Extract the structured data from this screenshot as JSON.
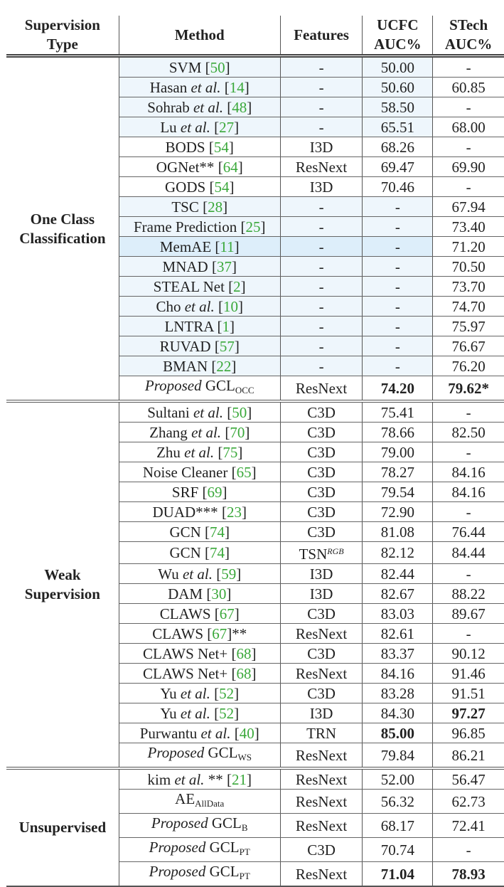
{
  "header": {
    "supervision_type": [
      "Supervision",
      "Type"
    ],
    "method": "Method",
    "features": "Features",
    "ucfc": [
      "UCFC",
      "AUC%"
    ],
    "stech": [
      "STech",
      "AUC%"
    ]
  },
  "groups": [
    {
      "label": [
        "One Class",
        "Classification"
      ],
      "rows": [
        {
          "name": "SVM",
          "ital": "",
          "ref": "50",
          "suffix": "",
          "features": "-",
          "ucfc": "50.00",
          "stech": "-"
        },
        {
          "name": "Hasan ",
          "ital": "et al.",
          "ref": "14",
          "suffix": "",
          "features": "-",
          "ucfc": "50.60",
          "stech": "60.85"
        },
        {
          "name": "Sohrab ",
          "ital": "et al.",
          "ref": "48",
          "suffix": "",
          "features": "-",
          "ucfc": "58.50",
          "stech": "-"
        },
        {
          "name": "Lu ",
          "ital": "et al.",
          "ref": "27",
          "suffix": "",
          "features": "-",
          "ucfc": "65.51",
          "stech": "68.00"
        },
        {
          "name": "BODS",
          "ital": "",
          "ref": "54",
          "suffix": "",
          "features": "I3D",
          "ucfc": "68.26",
          "stech": "-"
        },
        {
          "name": "OGNet**",
          "ital": "",
          "ref": "64",
          "suffix": "",
          "features": "ResNext",
          "ucfc": "69.47",
          "stech": "69.90"
        },
        {
          "name": "GODS",
          "ital": "",
          "ref": "54",
          "suffix": "",
          "features": "I3D",
          "ucfc": "70.46",
          "stech": "-"
        },
        {
          "name": "TSC",
          "ital": "",
          "ref": "28",
          "suffix": "",
          "features": "-",
          "ucfc": "-",
          "stech": "67.94"
        },
        {
          "name": "Frame Prediction",
          "ital": "",
          "ref": "25",
          "suffix": "",
          "features": "-",
          "ucfc": "-",
          "stech": "73.40"
        },
        {
          "name": "MemAE",
          "ital": "",
          "ref": "11",
          "suffix": "",
          "features": "-",
          "ucfc": "-",
          "stech": "71.20"
        },
        {
          "name": "MNAD",
          "ital": "",
          "ref": "37",
          "suffix": "",
          "features": "-",
          "ucfc": "-",
          "stech": "70.50"
        },
        {
          "name": "STEAL Net",
          "ital": "",
          "ref": "2",
          "suffix": "",
          "features": "-",
          "ucfc": "-",
          "stech": "73.70"
        },
        {
          "name": "Cho ",
          "ital": "et al.",
          "ref": "10",
          "suffix": "",
          "features": "-",
          "ucfc": "-",
          "stech": "74.70"
        },
        {
          "name": "LNTRA",
          "ital": "",
          "ref": "1",
          "suffix": "",
          "features": "-",
          "ucfc": "-",
          "stech": "75.97"
        },
        {
          "name": "RUVAD",
          "ital": "",
          "ref": "57",
          "suffix": "",
          "features": "-",
          "ucfc": "-",
          "stech": "76.67"
        },
        {
          "name": "BMAN",
          "ital": "",
          "ref": "22",
          "suffix": "",
          "features": "-",
          "ucfc": "-",
          "stech": "76.20"
        }
      ],
      "proposed": {
        "prefix": "Proposed",
        "name": "GCL",
        "sub": "OCC",
        "features": "ResNext",
        "ucfc": "74.20",
        "stech": "79.62*"
      }
    },
    {
      "label": [
        "Weak",
        "Supervision"
      ],
      "rows": [
        {
          "name": "Sultani ",
          "ital": "et al.",
          "ref": "50",
          "suffix": "",
          "features": "C3D",
          "ucfc": "75.41",
          "stech": "-"
        },
        {
          "name": "Zhang ",
          "ital": "et al.",
          "ref": "70",
          "suffix": "",
          "features": "C3D",
          "ucfc": "78.66",
          "stech": "82.50"
        },
        {
          "name": "Zhu ",
          "ital": "et al.",
          "ref": "75",
          "suffix": "",
          "features": "C3D",
          "ucfc": "79.00",
          "stech": "-"
        },
        {
          "name": "Noise Cleaner",
          "ital": "",
          "ref": "65",
          "suffix": "",
          "features": "C3D",
          "ucfc": "78.27",
          "stech": "84.16"
        },
        {
          "name": "SRF",
          "ital": "",
          "ref": "69",
          "suffix": "",
          "features": "C3D",
          "ucfc": "79.54",
          "stech": "84.16"
        },
        {
          "name": "DUAD***",
          "ital": "",
          "ref": "23",
          "suffix": "",
          "features": "C3D",
          "ucfc": "72.90",
          "stech": "-"
        },
        {
          "name": "GCN",
          "ital": "",
          "ref": "74",
          "suffix": "",
          "features": "C3D",
          "ucfc": "81.08",
          "stech": "76.44"
        },
        {
          "name": "GCN",
          "ital": "",
          "ref": "74",
          "suffix": "",
          "features": "TSN",
          "features_sup": "RGB",
          "ucfc": "82.12",
          "stech": "84.44"
        },
        {
          "name": "Wu ",
          "ital": "et al.",
          "ref": "59",
          "suffix": "",
          "features": "I3D",
          "ucfc": "82.44",
          "stech": "-"
        },
        {
          "name": "DAM",
          "ital": "",
          "ref": "30",
          "suffix": "",
          "features": "I3D",
          "ucfc": "82.67",
          "stech": "88.22"
        },
        {
          "name": "CLAWS",
          "ital": "",
          "ref": "67",
          "suffix": "",
          "features": "C3D",
          "ucfc": "83.03",
          "stech": "89.67"
        },
        {
          "name": "CLAWS",
          "ital": "",
          "ref": "67",
          "suffix": "**",
          "features": "ResNext",
          "ucfc": "82.61",
          "stech": "-"
        },
        {
          "name": "CLAWS Net+",
          "ital": "",
          "ref": "68",
          "suffix": "",
          "features": "C3D",
          "ucfc": "83.37",
          "stech": "90.12"
        },
        {
          "name": "CLAWS Net+",
          "ital": "",
          "ref": "68",
          "suffix": "",
          "features": "ResNext",
          "ucfc": "84.16",
          "stech": "91.46"
        },
        {
          "name": "Yu ",
          "ital": "et al.",
          "ref": "52",
          "suffix": "",
          "features": "C3D",
          "ucfc": "83.28",
          "stech": "91.51"
        },
        {
          "name": "Yu ",
          "ital": "et al.",
          "ref": "52",
          "suffix": "",
          "features": "I3D",
          "ucfc": "84.30",
          "stech": "97.27",
          "bold_stech": true
        },
        {
          "name": "Purwantu ",
          "ital": "et al.",
          "ref": "40",
          "suffix": "",
          "features": "TRN",
          "ucfc": "85.00",
          "stech": "96.85",
          "bold_ucfc": true
        }
      ],
      "proposed": {
        "prefix": "Proposed",
        "name": "GCL",
        "sub": "WS",
        "features": "ResNext",
        "ucfc": "79.84",
        "stech": "86.21"
      }
    },
    {
      "label": [
        "Unsupervised"
      ],
      "rows": [
        {
          "name": "kim ",
          "ital": "et al.",
          "ref": "21",
          "suffix": "",
          "mid": " ** ",
          "features": "ResNext",
          "ucfc": "52.00",
          "stech": "56.47"
        },
        {
          "name": "AE",
          "sub": "AllData",
          "features": "ResNext",
          "ucfc": "56.32",
          "stech": "62.73"
        },
        {
          "prefix": "Proposed",
          "name": "GCL",
          "sub": "B",
          "features": "ResNext",
          "ucfc": "68.17",
          "stech": "72.41"
        },
        {
          "prefix": "Proposed",
          "name": "GCL",
          "sub": "PT",
          "features": "C3D",
          "ucfc": "70.74",
          "stech": "-"
        },
        {
          "prefix": "Proposed",
          "name": "GCL",
          "sub": "PT",
          "features": "ResNext",
          "ucfc": "71.04",
          "stech": "78.93",
          "bold_ucfc": true,
          "bold_stech": true
        }
      ]
    }
  ]
}
